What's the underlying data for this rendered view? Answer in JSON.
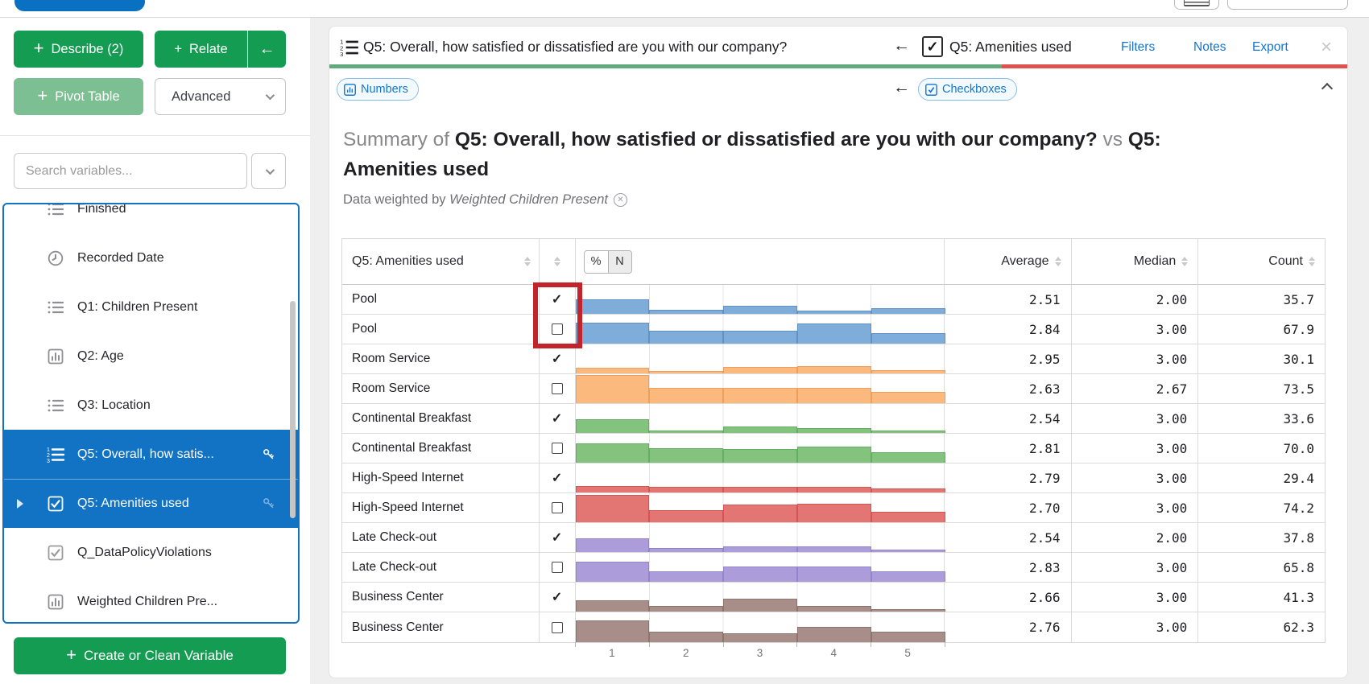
{
  "topbar": {
    "blue_pill_color": "#0a70c2"
  },
  "sidebar": {
    "describe_label": "Describe (2)",
    "relate_label": "Relate",
    "collapse_arrow": "←",
    "pivot_label": "Pivot Table",
    "advanced_label": "Advanced",
    "search_placeholder": "Search variables...",
    "items": [
      {
        "label": "Finished",
        "icon": "list"
      },
      {
        "label": "Recorded Date",
        "icon": "clock"
      },
      {
        "label": "Q1: Children Present",
        "icon": "list"
      },
      {
        "label": "Q2: Age",
        "icon": "bar-chart"
      },
      {
        "label": "Q3: Location",
        "icon": "list"
      },
      {
        "label": "Q5: Overall, how satis...",
        "icon": "ordered-list",
        "selected": true,
        "key": "solid"
      },
      {
        "label": "Q5: Amenities used",
        "icon": "checkbox-checked",
        "selected": true,
        "key": "faded",
        "caret": true
      },
      {
        "label": "Q_DataPolicyViolations",
        "icon": "checkbox-checked-gray"
      },
      {
        "label": "Weighted Children Pre...",
        "icon": "bar-chart"
      }
    ],
    "create_label": "Create or Clean Variable",
    "selected_color": "#1273c4",
    "button_green": "#149c52"
  },
  "header": {
    "primary_title": "Q5: Overall, how satisfied or dissatisfied are you with our company?",
    "back_arrow": "←",
    "secondary_title": "Q5: Amenities used",
    "links": [
      "Filters",
      "Notes",
      "Export"
    ],
    "close": "×",
    "underline_green": "#62ab7e",
    "underline_red": "#e0524e"
  },
  "badges": {
    "numbers": "Numbers",
    "back_arrow": "←",
    "checkboxes": "Checkboxes"
  },
  "summary": {
    "prefix": "Summary of ",
    "var1": "Q5: Overall, how satisfied or dissatisfied are you with our company?",
    "vs": " vs ",
    "var2": "Q5: Amenities used",
    "weight_prefix": "Data weighted by ",
    "weight_name": "Weighted Children Present",
    "weight_remove": "✕"
  },
  "table": {
    "col_header": "Q5: Amenities used",
    "toggle": [
      "%",
      "N"
    ],
    "toggle_selected": "N",
    "stat_headers": [
      "Average",
      "Median",
      "Count"
    ],
    "x_ticks": [
      "1",
      "2",
      "3",
      "4",
      "5"
    ],
    "bar_unit": "px",
    "colors": {
      "blue": {
        "fill": "#7fadd9",
        "border": "#6192c6"
      },
      "orange": {
        "fill": "#fcb97e",
        "border": "#ef9e5b"
      },
      "green": {
        "fill": "#84c37e",
        "border": "#62ae63"
      },
      "red": {
        "fill": "#e37573",
        "border": "#d45654"
      },
      "purple": {
        "fill": "#ac9dda",
        "border": "#9484ce"
      },
      "brown": {
        "fill": "#a88e88",
        "border": "#90736c"
      }
    },
    "rows": [
      {
        "label": "Pool",
        "checked": true,
        "color": "blue",
        "bars": [
          18,
          5,
          10,
          4,
          7
        ],
        "average": "2.51",
        "median": "2.00",
        "count": "35.7"
      },
      {
        "label": "Pool",
        "checked": false,
        "color": "blue",
        "bars": [
          26,
          16,
          16,
          25,
          13
        ],
        "average": "2.84",
        "median": "3.00",
        "count": "67.9"
      },
      {
        "label": "Room Service",
        "checked": true,
        "color": "orange",
        "bars": [
          7,
          3,
          8,
          9,
          4
        ],
        "average": "2.95",
        "median": "3.00",
        "count": "30.1"
      },
      {
        "label": "Room Service",
        "checked": false,
        "color": "orange",
        "bars": [
          35,
          19,
          19,
          19,
          14
        ],
        "average": "2.63",
        "median": "2.67",
        "count": "73.5"
      },
      {
        "label": "Continental Breakfast",
        "checked": true,
        "color": "green",
        "bars": [
          17,
          3,
          8,
          6,
          3
        ],
        "average": "2.54",
        "median": "3.00",
        "count": "33.6"
      },
      {
        "label": "Continental Breakfast",
        "checked": false,
        "color": "green",
        "bars": [
          24,
          18,
          17,
          20,
          13
        ],
        "average": "2.81",
        "median": "3.00",
        "count": "70.0"
      },
      {
        "label": "High-Speed Internet",
        "checked": true,
        "color": "red",
        "bars": [
          8,
          7,
          7,
          7,
          5
        ],
        "average": "2.79",
        "median": "3.00",
        "count": "29.4"
      },
      {
        "label": "High-Speed Internet",
        "checked": false,
        "color": "red",
        "bars": [
          34,
          15,
          22,
          23,
          13
        ],
        "average": "2.70",
        "median": "3.00",
        "count": "74.2"
      },
      {
        "label": "Late Check-out",
        "checked": true,
        "color": "purple",
        "bars": [
          17,
          5,
          7,
          7,
          3
        ],
        "average": "2.54",
        "median": "2.00",
        "count": "37.8"
      },
      {
        "label": "Late Check-out",
        "checked": false,
        "color": "purple",
        "bars": [
          25,
          13,
          19,
          19,
          13
        ],
        "average": "2.83",
        "median": "3.00",
        "count": "65.8"
      },
      {
        "label": "Business Center",
        "checked": true,
        "color": "brown",
        "bars": [
          14,
          7,
          16,
          7,
          3
        ],
        "average": "2.66",
        "median": "3.00",
        "count": "41.3"
      },
      {
        "label": "Business Center",
        "checked": false,
        "color": "brown",
        "bars": [
          27,
          13,
          11,
          19,
          13
        ],
        "average": "2.76",
        "median": "3.00",
        "count": "62.3"
      }
    ],
    "annotation_color": "#c3242b"
  }
}
